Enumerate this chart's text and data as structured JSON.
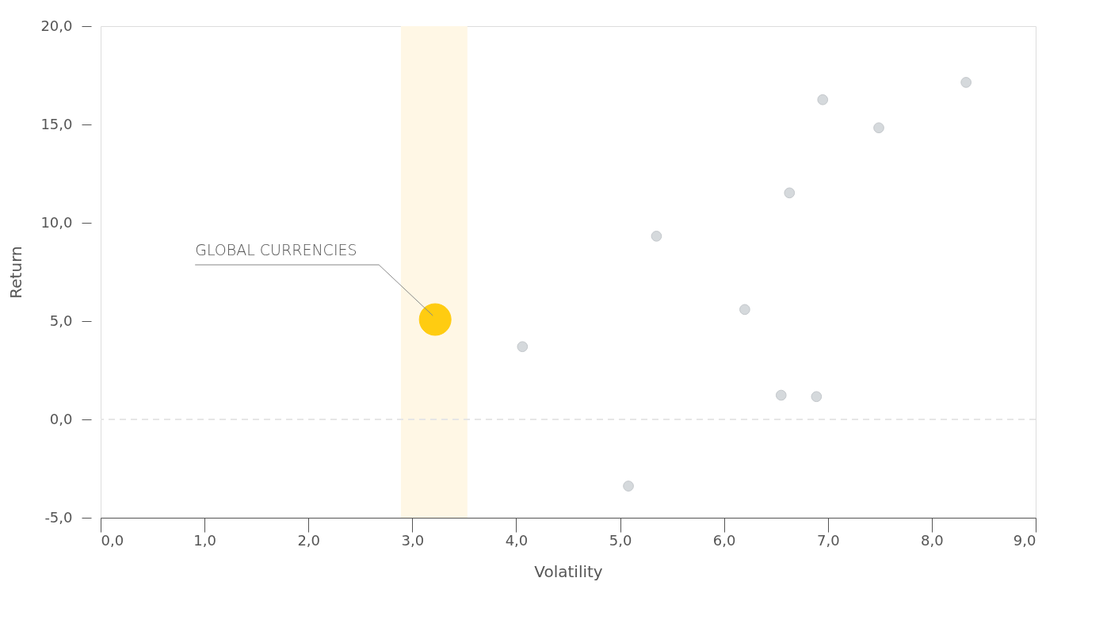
{
  "chart_data": {
    "type": "scatter",
    "xlabel": "Volatility",
    "ylabel": "Return",
    "series": [
      {
        "color": "#d5d9dc",
        "x": [
          8.33,
          6.95,
          7.49,
          6.63,
          5.35,
          6.2,
          4.06,
          6.55,
          6.89,
          5.08
        ],
        "values": [
          17.14,
          16.26,
          14.83,
          11.52,
          9.32,
          5.59,
          3.7,
          1.23,
          1.16,
          -3.39
        ]
      },
      {
        "color": "#ffcc11",
        "x": [
          3.22
        ],
        "values": [
          5.08
        ]
      }
    ],
    "xlim": [
      0,
      9
    ],
    "ylim": [
      -5,
      20
    ],
    "xticks": [
      {
        "value": 0,
        "label": "0,0"
      },
      {
        "value": 1,
        "label": "1,0"
      },
      {
        "value": 2,
        "label": "2,0"
      },
      {
        "value": 3,
        "label": "3,0"
      },
      {
        "value": 4,
        "label": "4,0"
      },
      {
        "value": 5,
        "label": "5,0"
      },
      {
        "value": 6,
        "label": "6,0"
      },
      {
        "value": 7,
        "label": "7,0"
      },
      {
        "value": 8,
        "label": "8,0"
      },
      {
        "value": 9,
        "label": "9,0"
      }
    ],
    "yticks": [
      {
        "value": -5,
        "label": "-5,0"
      },
      {
        "value": 0,
        "label": "0,0"
      },
      {
        "value": 5,
        "label": "5,0"
      },
      {
        "value": 10,
        "label": "10,0"
      },
      {
        "value": 15,
        "label": "15,0"
      },
      {
        "value": 20,
        "label": "20,0"
      }
    ],
    "ref_lines": [
      {
        "axis": "y",
        "value": 0,
        "color": "#e6e6e6",
        "line_style": "dashed"
      }
    ],
    "bands": [
      {
        "axis": "x",
        "from": 2.89,
        "to": 3.53,
        "color": "#fff7e5"
      }
    ],
    "annotations": [
      {
        "text": "GLOBAL CURRENCIES",
        "x": 3.22,
        "y": 5.08
      }
    ],
    "marker": "circle",
    "grid": false
  }
}
